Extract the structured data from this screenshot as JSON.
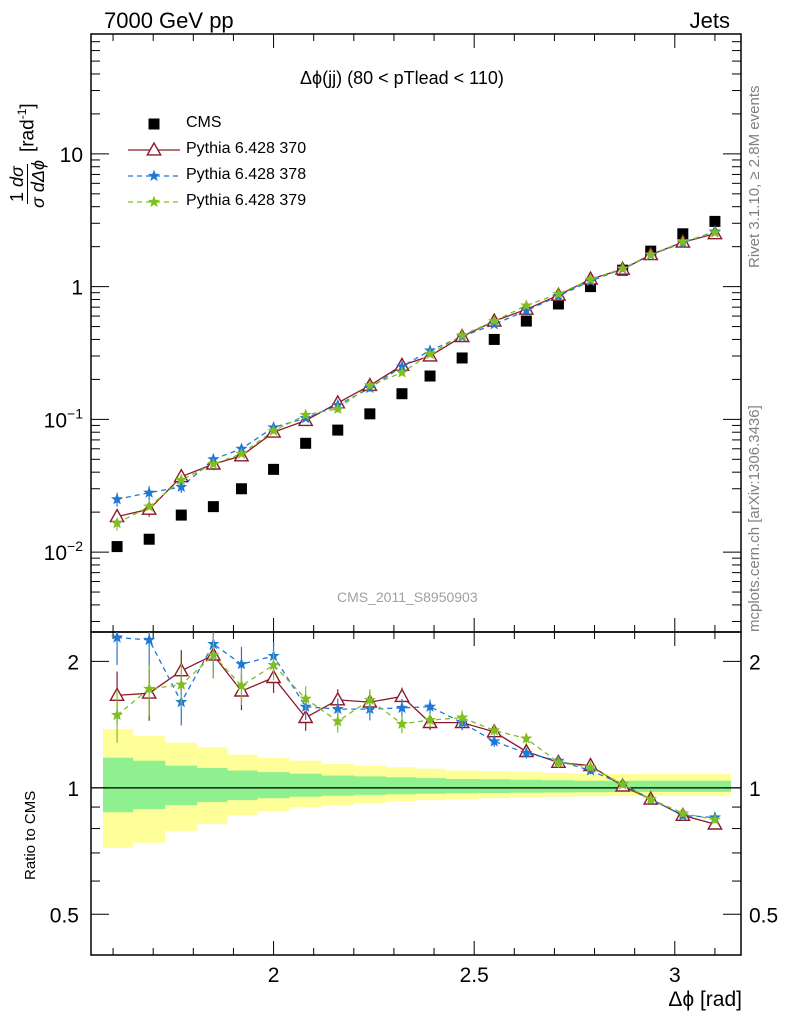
{
  "header": {
    "left": "7000 GeV pp",
    "right": "Jets"
  },
  "side_text": {
    "rivet": "Rivet 3.1.10, ≥ 2.8M events",
    "mcplots": "mcplots.cern.ch [arXiv:1306.3436]"
  },
  "colors": {
    "cms": "#000000",
    "p370": "#8b1a2b",
    "p378": "#1f78d6",
    "p379": "#7fbf1f",
    "band_inner": "#8ff08f",
    "band_outer": "#ffff99"
  },
  "chart_data": [
    {
      "type": "scatter",
      "title": "Δϕ(jj) (80 < pTlead <  110)",
      "watermark": "CMS_2011_S8950903",
      "ylabel": "1/σ dσ/dΔϕ [rad⁻¹]",
      "ylabel_unit": "[rad",
      "ylabel_unit_sup": "-1",
      "ylabel_unit_end": "]",
      "yscale": "log",
      "ylim": [
        0.0025,
        80
      ],
      "xlim": [
        1.545,
        3.165
      ],
      "yticks": [
        {
          "value": 0.01,
          "base": "10",
          "exp": "−2"
        },
        {
          "value": 0.1,
          "base": "10",
          "exp": "−1"
        },
        {
          "value": 1,
          "base": "1",
          "exp": ""
        },
        {
          "value": 10,
          "base": "10",
          "exp": ""
        }
      ],
      "legend": {
        "position": "top-left",
        "entries": [
          "CMS",
          "Pythia 6.428 370",
          "Pythia 6.428 378",
          "Pythia 6.428 379"
        ]
      },
      "x": [
        1.61,
        1.69,
        1.77,
        1.85,
        1.92,
        2.0,
        2.08,
        2.16,
        2.24,
        2.32,
        2.39,
        2.47,
        2.55,
        2.63,
        2.71,
        2.79,
        2.87,
        2.94,
        3.02,
        3.1
      ],
      "series": [
        {
          "name": "CMS",
          "marker": "square",
          "values": [
            0.011,
            0.0125,
            0.019,
            0.022,
            0.03,
            0.042,
            0.066,
            0.083,
            0.11,
            0.156,
            0.212,
            0.29,
            0.4,
            0.55,
            0.74,
            1.0,
            1.33,
            1.85,
            2.5,
            3.1
          ]
        },
        {
          "name": "Pythia 6.428 370",
          "marker": "triangle",
          "line": "solid",
          "values": [
            0.0185,
            0.021,
            0.037,
            0.046,
            0.053,
            0.08,
            0.098,
            0.133,
            0.18,
            0.255,
            0.3,
            0.42,
            0.55,
            0.675,
            0.86,
            1.14,
            1.35,
            1.74,
            2.16,
            2.5
          ]
        },
        {
          "name": "Pythia 6.428 378",
          "marker": "star",
          "line": "dashed",
          "values": [
            0.025,
            0.028,
            0.031,
            0.05,
            0.06,
            0.087,
            0.102,
            0.128,
            0.172,
            0.25,
            0.33,
            0.42,
            0.52,
            0.66,
            0.85,
            1.1,
            1.36,
            1.73,
            2.14,
            2.6
          ]
        },
        {
          "name": "Pythia 6.428 379",
          "marker": "star",
          "line": "dashed",
          "values": [
            0.0165,
            0.022,
            0.035,
            0.046,
            0.055,
            0.082,
            0.108,
            0.12,
            0.18,
            0.225,
            0.31,
            0.43,
            0.55,
            0.72,
            0.88,
            1.13,
            1.37,
            1.74,
            2.18,
            2.55
          ]
        }
      ]
    },
    {
      "type": "scatter",
      "ylabel": "Ratio to CMS",
      "xlabel": "Δϕ [rad]",
      "yscale": "log",
      "ylim": [
        0.4,
        2.35
      ],
      "xlim": [
        1.545,
        3.165
      ],
      "yticks": [
        0.5,
        1,
        2
      ],
      "xticks": [
        2,
        2.5,
        3
      ],
      "reference_line": 1,
      "x": [
        1.61,
        1.69,
        1.77,
        1.85,
        1.92,
        2.0,
        2.08,
        2.16,
        2.24,
        2.32,
        2.39,
        2.47,
        2.55,
        2.63,
        2.71,
        2.79,
        2.87,
        2.94,
        3.02,
        3.1
      ],
      "band_inner": [
        [
          0.875,
          1.18
        ],
        [
          0.89,
          1.16
        ],
        [
          0.91,
          1.13
        ],
        [
          0.925,
          1.115
        ],
        [
          0.935,
          1.1
        ],
        [
          0.945,
          1.09
        ],
        [
          0.952,
          1.08
        ],
        [
          0.958,
          1.07
        ],
        [
          0.962,
          1.065
        ],
        [
          0.965,
          1.06
        ],
        [
          0.968,
          1.055
        ],
        [
          0.97,
          1.05
        ],
        [
          0.972,
          1.048
        ],
        [
          0.974,
          1.045
        ],
        [
          0.975,
          1.043
        ],
        [
          0.976,
          1.04
        ],
        [
          0.977,
          1.04
        ],
        [
          0.978,
          1.04
        ],
        [
          0.978,
          1.04
        ],
        [
          0.978,
          1.04
        ]
      ],
      "band_outer": [
        [
          0.72,
          1.38
        ],
        [
          0.74,
          1.33
        ],
        [
          0.79,
          1.28
        ],
        [
          0.82,
          1.25
        ],
        [
          0.86,
          1.2
        ],
        [
          0.88,
          1.18
        ],
        [
          0.9,
          1.16
        ],
        [
          0.91,
          1.14
        ],
        [
          0.92,
          1.13
        ],
        [
          0.93,
          1.12
        ],
        [
          0.935,
          1.11
        ],
        [
          0.94,
          1.1
        ],
        [
          0.945,
          1.095
        ],
        [
          0.95,
          1.09
        ],
        [
          0.952,
          1.085
        ],
        [
          0.955,
          1.08
        ],
        [
          0.956,
          1.08
        ],
        [
          0.957,
          1.08
        ],
        [
          0.958,
          1.08
        ],
        [
          0.958,
          1.08
        ]
      ],
      "series": [
        {
          "name": "Pythia 6.428 370",
          "marker": "triangle",
          "line": "solid",
          "values": [
            1.66,
            1.68,
            1.9,
            2.07,
            1.7,
            1.83,
            1.47,
            1.62,
            1.6,
            1.65,
            1.43,
            1.43,
            1.36,
            1.22,
            1.15,
            1.13,
            1.01,
            0.94,
            0.86,
            0.82
          ]
        },
        {
          "name": "Pythia 6.428 378",
          "marker": "star",
          "line": "dashed",
          "values": [
            2.28,
            2.25,
            1.6,
            2.2,
            1.97,
            2.06,
            1.56,
            1.54,
            1.54,
            1.55,
            1.56,
            1.43,
            1.29,
            1.21,
            1.16,
            1.1,
            1.02,
            0.94,
            0.86,
            0.85
          ]
        },
        {
          "name": "Pythia 6.428 379",
          "marker": "star",
          "line": "dashed",
          "values": [
            1.49,
            1.72,
            1.76,
            2.07,
            1.75,
            1.96,
            1.63,
            1.44,
            1.62,
            1.42,
            1.45,
            1.47,
            1.37,
            1.31,
            1.15,
            1.12,
            1.02,
            0.94,
            0.87,
            0.84
          ]
        }
      ]
    }
  ]
}
